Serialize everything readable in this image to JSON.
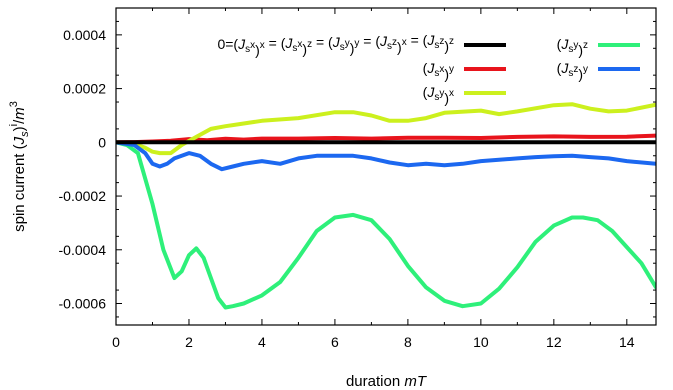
{
  "chart_data": {
    "type": "line",
    "xlabel": "duration mT",
    "ylabel": "spin current (Js)i/m3",
    "xlim": [
      0,
      14.8
    ],
    "ylim": [
      -0.00068,
      0.0005
    ],
    "xticks": [
      0,
      2,
      4,
      6,
      8,
      10,
      12,
      14
    ],
    "xtick_labels": [
      "0",
      "2",
      "4",
      "6",
      "8",
      "10",
      "12",
      "14"
    ],
    "yticks": [
      0.0004,
      0.0002,
      0,
      -0.0002,
      -0.0004,
      -0.0006
    ],
    "ytick_labels": [
      "0.0004",
      "0.0002",
      "0",
      "-0.0002",
      "-0.0004",
      "-0.0006"
    ],
    "grid": false,
    "legend_position": "top-right",
    "series": [
      {
        "name": "0=(Jsx)x = (Jsx)z = (Jsy)y = (Jsz)x = (Jsz)z",
        "color": "#000000",
        "x": [
          0,
          14.8
        ],
        "y": [
          0,
          0
        ]
      },
      {
        "name": "(Jsx)y",
        "color": "#e8141c",
        "x": [
          0,
          0.5,
          1.0,
          1.5,
          2.0,
          2.5,
          3.0,
          3.5,
          4.0,
          5.0,
          6.0,
          7.0,
          8.0,
          9.0,
          10.0,
          11.0,
          12.0,
          13.0,
          14.0,
          14.8
        ],
        "y": [
          0,
          1e-06,
          3e-06,
          6e-06,
          1.2e-05,
          8e-06,
          1.3e-05,
          1e-05,
          1.4e-05,
          1.4e-05,
          1.6e-05,
          1.4e-05,
          1.7e-05,
          1.7e-05,
          1.6e-05,
          2e-05,
          2.2e-05,
          2e-05,
          2.1e-05,
          2.5e-05
        ]
      },
      {
        "name": "(Jsy)x",
        "color": "#ccf01e",
        "x": [
          0,
          0.5,
          0.8,
          1.0,
          1.2,
          1.5,
          1.8,
          2.2,
          2.6,
          3.0,
          3.5,
          4.0,
          5.0,
          6.0,
          6.5,
          7.0,
          7.5,
          8.0,
          8.5,
          9.0,
          10.0,
          10.5,
          11.0,
          12.0,
          12.5,
          13.0,
          13.5,
          14.0,
          14.8
        ],
        "y": [
          0,
          -5e-06,
          -2e-05,
          -3.5e-05,
          -4e-05,
          -4e-05,
          -1e-05,
          2e-05,
          5e-05,
          6e-05,
          7e-05,
          8e-05,
          9e-05,
          0.000112,
          0.000112,
          0.0001,
          8e-05,
          8e-05,
          9e-05,
          0.00011,
          0.000118,
          0.000105,
          0.000115,
          0.000138,
          0.000142,
          0.000125,
          0.000115,
          0.000118,
          0.00014
        ]
      },
      {
        "name": "(Jsy)z",
        "color": "#2ef07a",
        "x": [
          0,
          0.3,
          0.6,
          1.0,
          1.3,
          1.6,
          1.8,
          2.0,
          2.2,
          2.4,
          2.6,
          2.8,
          3.0,
          3.2,
          3.5,
          4.0,
          4.5,
          5.0,
          5.5,
          6.0,
          6.5,
          7.0,
          7.5,
          8.0,
          8.5,
          9.0,
          9.5,
          10.0,
          10.5,
          11.0,
          11.5,
          12.0,
          12.5,
          12.8,
          13.2,
          13.6,
          14.0,
          14.4,
          14.8
        ],
        "y": [
          0,
          -1e-05,
          -4e-05,
          -0.00023,
          -0.0004,
          -0.000505,
          -0.00048,
          -0.00042,
          -0.000395,
          -0.00043,
          -0.000505,
          -0.00058,
          -0.000615,
          -0.00061,
          -0.0006,
          -0.00057,
          -0.00052,
          -0.00043,
          -0.00033,
          -0.00028,
          -0.00027,
          -0.00029,
          -0.00036,
          -0.00046,
          -0.00054,
          -0.00059,
          -0.00061,
          -0.0006,
          -0.000545,
          -0.000465,
          -0.00037,
          -0.00031,
          -0.00028,
          -0.00028,
          -0.00029,
          -0.00033,
          -0.00039,
          -0.00045,
          -0.00054
        ]
      },
      {
        "name": "(Jsz)y",
        "color": "#1c68f0",
        "x": [
          0,
          0.5,
          0.8,
          1.0,
          1.2,
          1.4,
          1.6,
          1.8,
          2.0,
          2.3,
          2.6,
          2.9,
          3.2,
          3.5,
          4.0,
          4.5,
          5.0,
          5.5,
          6.0,
          6.5,
          7.0,
          7.5,
          8.0,
          8.5,
          9.0,
          9.5,
          10.0,
          10.5,
          11.0,
          11.5,
          12.0,
          12.5,
          13.0,
          13.5,
          14.0,
          14.8
        ],
        "y": [
          0,
          -1e-05,
          -4e-05,
          -8e-05,
          -9e-05,
          -8e-05,
          -6e-05,
          -5e-05,
          -4e-05,
          -5e-05,
          -8e-05,
          -0.0001,
          -9e-05,
          -8e-05,
          -7e-05,
          -8e-05,
          -6e-05,
          -5e-05,
          -5e-05,
          -5e-05,
          -6e-05,
          -7.5e-05,
          -8.5e-05,
          -8e-05,
          -8.5e-05,
          -8e-05,
          -7e-05,
          -6.5e-05,
          -6e-05,
          -5.5e-05,
          -5.2e-05,
          -5e-05,
          -5.5e-05,
          -6e-05,
          -7e-05,
          -8e-05
        ]
      }
    ]
  }
}
